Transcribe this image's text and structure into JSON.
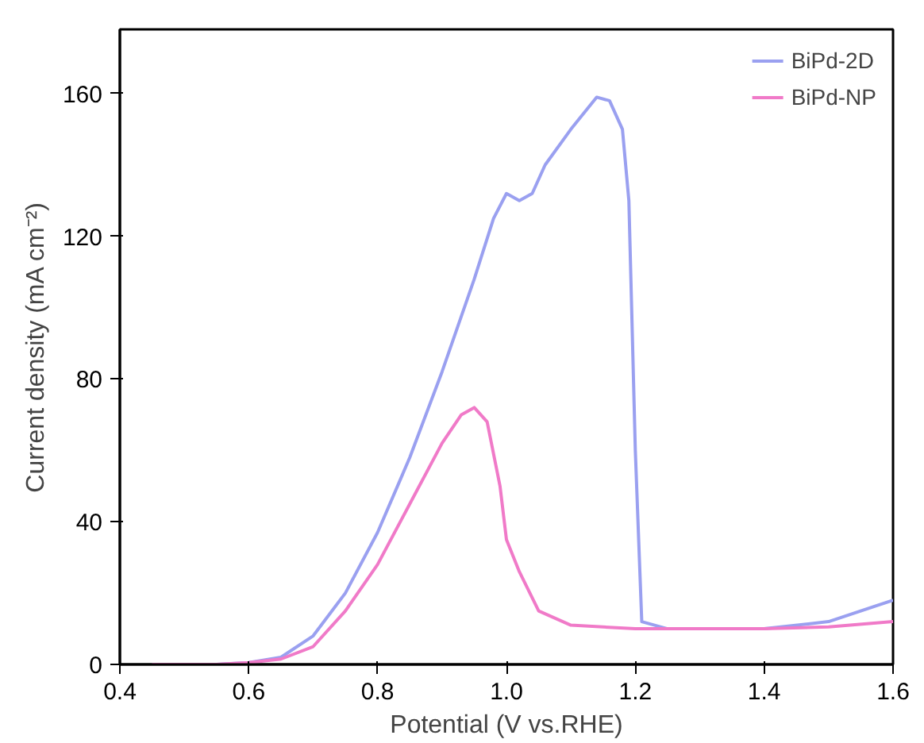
{
  "chart_data": {
    "type": "line",
    "xlabel": "Potential (V vs.RHE)",
    "ylabel": "Current density (mA cm⁻²)",
    "xlim": [
      0.4,
      1.6
    ],
    "xticks": [
      {
        "value": 0.4,
        "label": "0.4"
      },
      {
        "value": 0.6,
        "label": "0.6"
      },
      {
        "value": 0.8,
        "label": "0.8"
      },
      {
        "value": 1.0,
        "label": "1.0"
      },
      {
        "value": 1.2,
        "label": "1.2"
      },
      {
        "value": 1.4,
        "label": "1.4"
      },
      {
        "value": 1.6,
        "label": "1.6"
      }
    ],
    "ylim": [
      0,
      178
    ],
    "yticks": [
      0,
      40,
      80,
      120,
      160
    ],
    "grid": false,
    "legend": "top right",
    "series": [
      {
        "name": "BiPd-2D",
        "color": "#9aa0f0",
        "x": [
          0.45,
          0.55,
          0.6,
          0.65,
          0.7,
          0.75,
          0.8,
          0.85,
          0.9,
          0.95,
          0.98,
          1.0,
          1.02,
          1.04,
          1.06,
          1.1,
          1.14,
          1.16,
          1.18,
          1.19,
          1.2,
          1.21,
          1.25,
          1.4,
          1.5,
          1.6
        ],
        "values": [
          0,
          0,
          0.5,
          2,
          8,
          20,
          37,
          58,
          82,
          108,
          125,
          132,
          130,
          132,
          140,
          150,
          159,
          158,
          150,
          130,
          60,
          12,
          10,
          10,
          12,
          18
        ]
      },
      {
        "name": "BiPd-NP",
        "color": "#f07ac8",
        "x": [
          0.45,
          0.55,
          0.6,
          0.65,
          0.7,
          0.75,
          0.8,
          0.85,
          0.9,
          0.93,
          0.95,
          0.97,
          0.99,
          1.0,
          1.02,
          1.05,
          1.1,
          1.2,
          1.4,
          1.5,
          1.6
        ],
        "values": [
          0,
          0,
          0.5,
          1.5,
          5,
          15,
          28,
          45,
          62,
          70,
          72,
          68,
          50,
          35,
          26,
          15,
          11,
          10,
          10,
          10.5,
          12
        ]
      }
    ]
  }
}
